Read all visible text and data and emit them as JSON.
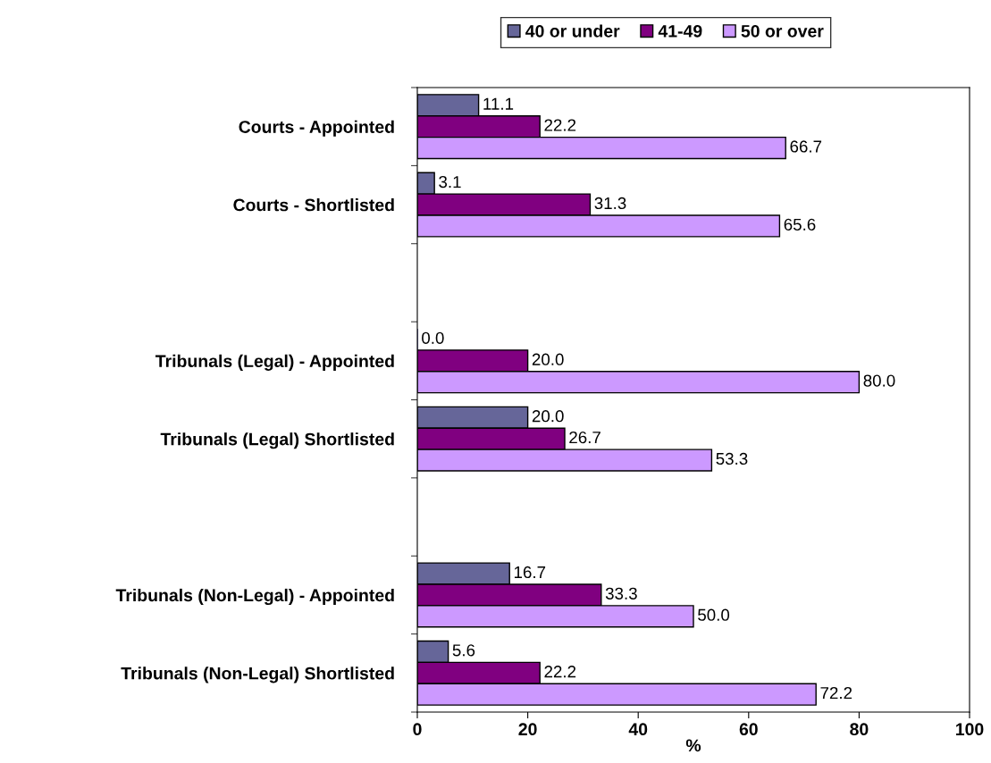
{
  "chart_data": {
    "type": "bar",
    "orientation": "horizontal",
    "xlabel": "%",
    "categories": [
      "Courts - Appointed",
      "Courts - Shortlisted",
      null,
      "Tribunals (Legal) - Appointed",
      "Tribunals (Legal) Shortlisted",
      null,
      "Tribunals (Non-Legal) - Appointed",
      "Tribunals (Non-Legal) Shortlisted"
    ],
    "series": [
      {
        "name": "40 or under",
        "color": "#666699",
        "values": [
          11.1,
          3.1,
          null,
          0.0,
          20.0,
          null,
          16.7,
          5.6
        ],
        "value_labels": [
          "11.1",
          "3.1",
          null,
          "0.0",
          "20.0",
          null,
          "16.7",
          "5.6"
        ]
      },
      {
        "name": "41-49",
        "color": "#800080",
        "values": [
          22.2,
          31.3,
          null,
          20.0,
          26.7,
          null,
          33.3,
          22.2
        ],
        "value_labels": [
          "22.2",
          "31.3",
          null,
          "20.0",
          "26.7",
          null,
          "33.3",
          "22.2"
        ]
      },
      {
        "name": "50 or over",
        "color": "#cc99ff",
        "values": [
          66.7,
          65.6,
          null,
          80.0,
          53.3,
          null,
          50.0,
          72.2
        ],
        "value_labels": [
          "66.7",
          "65.6",
          null,
          "80.0",
          "53.3",
          null,
          "50.0",
          "72.2"
        ]
      }
    ],
    "xlim": [
      0,
      100
    ],
    "xticks": [
      0,
      20,
      40,
      60,
      80,
      100
    ],
    "grid": false,
    "legend": "top"
  }
}
